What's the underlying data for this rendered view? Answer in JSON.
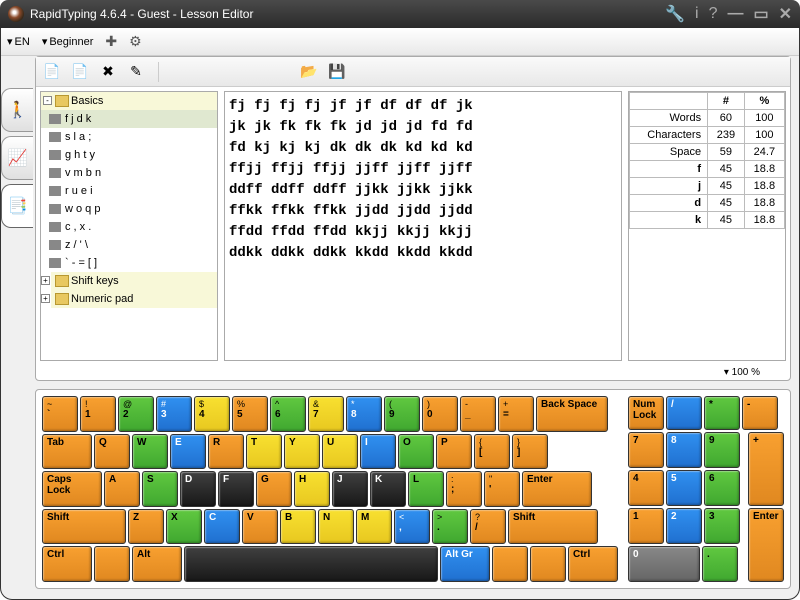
{
  "title": "RapidTyping 4.6.4 - Guest - Lesson Editor",
  "menu": {
    "lang": "EN",
    "level": "Beginner"
  },
  "tree": {
    "root": "Basics",
    "items": [
      "f j d k",
      "s l a ;",
      "g h t y",
      "v m b n",
      "r u e i",
      "w o q p",
      "c , x .",
      "z / ' \\",
      "` - = [ ]"
    ],
    "after": [
      "Shift keys",
      "Numeric pad"
    ]
  },
  "text_lines": [
    "fj fj fj fj jf jf df df df jk",
    "jk jk fk fk fk jd jd jd fd fd",
    "fd kj kj kj dk dk dk kd kd kd",
    "ffjj ffjj ffjj jjff jjff jjff",
    "ddff ddff ddff jjkk jjkk jjkk",
    "ffkk ffkk ffkk jjdd jjdd jjdd",
    "ffdd ffdd ffdd kkjj kkjj kkjj",
    "ddkk ddkk ddkk kkdd kkdd kkdd"
  ],
  "stats": {
    "headers": [
      "",
      "#",
      "%"
    ],
    "rows": [
      [
        "Words",
        "60",
        "100"
      ],
      [
        "Characters",
        "239",
        "100"
      ],
      [
        "Space",
        "59",
        "24.7"
      ],
      [
        "f",
        "45",
        "18.8"
      ],
      [
        "j",
        "45",
        "18.8"
      ],
      [
        "d",
        "45",
        "18.8"
      ],
      [
        "k",
        "45",
        "18.8"
      ]
    ]
  },
  "zoom": "100 %",
  "keyboard": {
    "r1": [
      {
        "t": "~",
        "m": "`",
        "c": "or",
        "w": "w1"
      },
      {
        "t": "!",
        "m": "1",
        "c": "or",
        "w": "w1"
      },
      {
        "t": "@",
        "m": "2",
        "c": "gr",
        "w": "w1"
      },
      {
        "t": "#",
        "m": "3",
        "c": "bl",
        "w": "w1"
      },
      {
        "t": "$",
        "m": "4",
        "c": "ye",
        "w": "w1"
      },
      {
        "t": "%",
        "m": "5",
        "c": "or",
        "w": "w1"
      },
      {
        "t": "^",
        "m": "6",
        "c": "gr",
        "w": "w1"
      },
      {
        "t": "&",
        "m": "7",
        "c": "ye",
        "w": "w1"
      },
      {
        "t": "*",
        "m": "8",
        "c": "bl",
        "w": "w1"
      },
      {
        "t": "(",
        "m": "9",
        "c": "gr",
        "w": "w1"
      },
      {
        "t": ")",
        "m": "0",
        "c": "or",
        "w": "w1"
      },
      {
        "t": "-",
        "m": "_",
        "c": "or",
        "w": "w1"
      },
      {
        "t": "+",
        "m": "=",
        "c": "or",
        "w": "w1"
      },
      {
        "t": "",
        "m": "Back Space",
        "c": "or",
        "w": "w2"
      }
    ],
    "r2": [
      {
        "t": "",
        "m": "Tab",
        "c": "or",
        "w": "w15"
      },
      {
        "t": "",
        "m": "Q",
        "c": "or",
        "w": "w1"
      },
      {
        "t": "",
        "m": "W",
        "c": "gr",
        "w": "w1"
      },
      {
        "t": "",
        "m": "E",
        "c": "bl",
        "w": "w1"
      },
      {
        "t": "",
        "m": "R",
        "c": "or",
        "w": "w1"
      },
      {
        "t": "",
        "m": "T",
        "c": "ye",
        "w": "w1"
      },
      {
        "t": "",
        "m": "Y",
        "c": "ye",
        "w": "w1"
      },
      {
        "t": "",
        "m": "U",
        "c": "ye",
        "w": "w1"
      },
      {
        "t": "",
        "m": "I",
        "c": "bl",
        "w": "w1"
      },
      {
        "t": "",
        "m": "O",
        "c": "gr",
        "w": "w1"
      },
      {
        "t": "",
        "m": "P",
        "c": "or",
        "w": "w1"
      },
      {
        "t": "{",
        "m": "[",
        "c": "or",
        "w": "w1"
      },
      {
        "t": "}",
        "m": "]",
        "c": "or",
        "w": "w1"
      }
    ],
    "r3": [
      {
        "t": "",
        "m": "Caps Lock",
        "c": "or",
        "w": "w175"
      },
      {
        "t": "",
        "m": "A",
        "c": "or",
        "w": "w1"
      },
      {
        "t": "",
        "m": "S",
        "c": "gr",
        "w": "w1"
      },
      {
        "t": "",
        "m": "D",
        "c": "bk",
        "w": "w1"
      },
      {
        "t": "",
        "m": "F",
        "c": "bk",
        "w": "w1"
      },
      {
        "t": "",
        "m": "G",
        "c": "or",
        "w": "w1"
      },
      {
        "t": "",
        "m": "H",
        "c": "ye",
        "w": "w1"
      },
      {
        "t": "",
        "m": "J",
        "c": "bk",
        "w": "w1"
      },
      {
        "t": "",
        "m": "K",
        "c": "bk",
        "w": "w1"
      },
      {
        "t": "",
        "m": "L",
        "c": "gr",
        "w": "w1"
      },
      {
        "t": ":",
        "m": ";",
        "c": "or",
        "w": "w1"
      },
      {
        "t": "\"",
        "m": "'",
        "c": "or",
        "w": "w1"
      },
      {
        "t": "",
        "m": "Enter",
        "c": "or",
        "w": "wenter"
      }
    ],
    "r4": [
      {
        "t": "",
        "m": "Shift",
        "c": "or",
        "w": "w225"
      },
      {
        "t": "",
        "m": "Z",
        "c": "or",
        "w": "w1"
      },
      {
        "t": "",
        "m": "X",
        "c": "gr",
        "w": "w1"
      },
      {
        "t": "",
        "m": "C",
        "c": "bl",
        "w": "w1"
      },
      {
        "t": "",
        "m": "V",
        "c": "or",
        "w": "w1"
      },
      {
        "t": "",
        "m": "B",
        "c": "ye",
        "w": "w1"
      },
      {
        "t": "",
        "m": "N",
        "c": "ye",
        "w": "w1"
      },
      {
        "t": "",
        "m": "M",
        "c": "ye",
        "w": "w1"
      },
      {
        "t": "<",
        "m": ",",
        "c": "bl",
        "w": "w1"
      },
      {
        "t": ">",
        "m": ".",
        "c": "gr",
        "w": "w1"
      },
      {
        "t": "?",
        "m": "/",
        "c": "or",
        "w": "w1"
      },
      {
        "t": "",
        "m": "Shift",
        "c": "or",
        "w": "w25"
      }
    ],
    "r5": [
      {
        "t": "",
        "m": "Ctrl",
        "c": "or",
        "w": "w15"
      },
      {
        "t": "",
        "m": "",
        "c": "or",
        "w": "w1"
      },
      {
        "t": "",
        "m": "Alt",
        "c": "or",
        "w": "w15"
      },
      {
        "t": "",
        "m": "",
        "c": "bk",
        "w": "wspace"
      },
      {
        "t": "",
        "m": "Alt Gr",
        "c": "bl",
        "w": "w15"
      },
      {
        "t": "",
        "m": "",
        "c": "or",
        "w": "w1"
      },
      {
        "t": "",
        "m": "",
        "c": "or",
        "w": "w1"
      },
      {
        "t": "",
        "m": "Ctrl",
        "c": "or",
        "w": "w15"
      }
    ],
    "n1": [
      {
        "t": "",
        "m": "Num Lock",
        "c": "or",
        "w": "w1"
      },
      {
        "t": "",
        "m": "/",
        "c": "bl",
        "w": "w1"
      },
      {
        "t": "",
        "m": "*",
        "c": "gr",
        "w": "w1"
      },
      {
        "t": "",
        "m": "-",
        "c": "or",
        "w": "w1"
      }
    ],
    "n2": [
      {
        "t": "",
        "m": "7",
        "c": "or",
        "w": "w1"
      },
      {
        "t": "",
        "m": "8",
        "c": "bl",
        "w": "w1"
      },
      {
        "t": "",
        "m": "9",
        "c": "gr",
        "w": "w1"
      }
    ],
    "n3": [
      {
        "t": "",
        "m": "4",
        "c": "or",
        "w": "w1"
      },
      {
        "t": "",
        "m": "5",
        "c": "bl",
        "w": "w1"
      },
      {
        "t": "",
        "m": "6",
        "c": "gr",
        "w": "w1"
      }
    ],
    "n4": [
      {
        "t": "",
        "m": "1",
        "c": "or",
        "w": "w1"
      },
      {
        "t": "",
        "m": "2",
        "c": "bl",
        "w": "w1"
      },
      {
        "t": "",
        "m": "3",
        "c": "gr",
        "w": "w1"
      }
    ],
    "n5": [
      {
        "t": "",
        "m": "0",
        "c": "gy",
        "w": "w2"
      },
      {
        "t": "",
        "m": ".",
        "c": "gr",
        "w": "w1"
      }
    ],
    "nplus": {
      "t": "",
      "m": "+",
      "c": "or"
    },
    "nenter": {
      "t": "",
      "m": "Enter",
      "c": "or"
    }
  }
}
